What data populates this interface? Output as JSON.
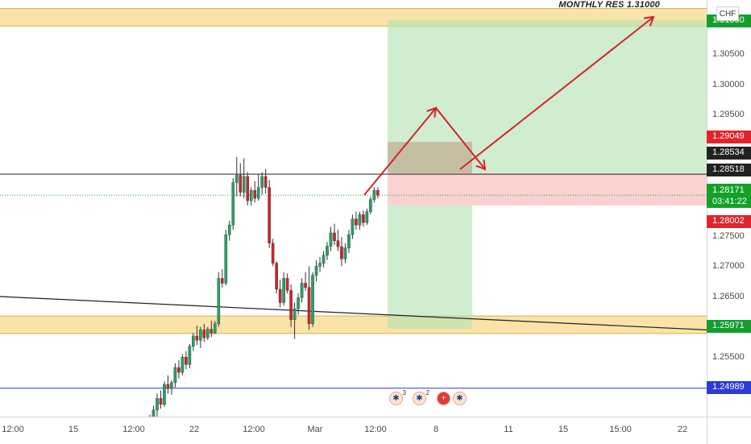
{
  "chart_data": {
    "type": "candlestick",
    "instrument_currency": "CHF",
    "title": "",
    "annotation": "MONTHLY RES 1.31000",
    "y_range": [
      1.2452,
      1.3139
    ],
    "price_ticks": [
      "1.30500",
      "1.30000",
      "1.29500",
      "1.27500",
      "1.27000",
      "1.26500",
      "1.25500"
    ],
    "time_ticks": [
      "12:00",
      "15",
      "12:00",
      "22",
      "12:00",
      "Mar",
      "12:00",
      "8",
      "11",
      "15",
      "15:00",
      "22"
    ],
    "price_badges": [
      {
        "text": "1.31000",
        "color": "#139d2f"
      },
      {
        "text": "1.29049",
        "color": "#e0242b"
      },
      {
        "text": "1.28534",
        "color": "#222222"
      },
      {
        "text": "1.28518",
        "color": "#222222"
      },
      {
        "text": "1.28171",
        "sub": "03:41:22",
        "color": "#13a128"
      },
      {
        "text": "1.28002",
        "color": "#e0242b"
      },
      {
        "text": "1.25971",
        "color": "#139d2f"
      },
      {
        "text": "1.24989",
        "color": "#2b3bd6"
      }
    ],
    "zones": [
      {
        "name": "resistance-zone",
        "from": 1.3125,
        "to": 1.3096,
        "color": "#f7d98b"
      },
      {
        "name": "support-zone",
        "from": 1.2618,
        "to": 1.2589,
        "color": "#f7d98b"
      }
    ],
    "position": {
      "entry": 1.28534,
      "target": 1.31,
      "stop": 1.28002,
      "entry_alt": 1.29049,
      "stop_alt": 1.25971
    },
    "horizontal_lines": [
      {
        "price": 1.28518,
        "color": "#222222"
      },
      {
        "price": 1.24989,
        "color": "#2b3bd6"
      }
    ],
    "candles": [
      [
        1.2435,
        1.2455,
        1.2428,
        1.2447
      ],
      [
        1.2447,
        1.247,
        1.244,
        1.2463
      ],
      [
        1.2463,
        1.249,
        1.2452,
        1.2482
      ],
      [
        1.2482,
        1.2495,
        1.2465,
        1.2472
      ],
      [
        1.2472,
        1.251,
        1.2468,
        1.2505
      ],
      [
        1.2505,
        1.252,
        1.249,
        1.2498
      ],
      [
        1.2498,
        1.2512,
        1.2488,
        1.2508
      ],
      [
        1.2508,
        1.254,
        1.25,
        1.2533
      ],
      [
        1.2533,
        1.2545,
        1.2515,
        1.2525
      ],
      [
        1.2525,
        1.2555,
        1.252,
        1.255
      ],
      [
        1.255,
        1.256,
        1.253,
        1.2538
      ],
      [
        1.2538,
        1.2572,
        1.2532,
        1.2568
      ],
      [
        1.2568,
        1.259,
        1.256,
        1.2585
      ],
      [
        1.2585,
        1.2602,
        1.257,
        1.2578
      ],
      [
        1.2578,
        1.26,
        1.2565,
        1.2595
      ],
      [
        1.2595,
        1.2605,
        1.2575,
        1.2582
      ],
      [
        1.2582,
        1.26,
        1.2578,
        1.2596
      ],
      [
        1.2596,
        1.261,
        1.2583,
        1.259
      ],
      [
        1.259,
        1.261,
        1.2588,
        1.2605
      ],
      [
        1.2605,
        1.269,
        1.26,
        1.268
      ],
      [
        1.268,
        1.2695,
        1.2665,
        1.2672
      ],
      [
        1.2672,
        1.276,
        1.2668,
        1.2752
      ],
      [
        1.2752,
        1.2775,
        1.2742,
        1.2768
      ],
      [
        1.2768,
        1.2845,
        1.276,
        1.2838
      ],
      [
        1.2838,
        1.288,
        1.2815,
        1.285
      ],
      [
        1.285,
        1.287,
        1.2815,
        1.2822
      ],
      [
        1.2822,
        1.2878,
        1.2812,
        1.2848
      ],
      [
        1.2848,
        1.2855,
        1.28,
        1.2808
      ],
      [
        1.2808,
        1.283,
        1.28,
        1.2825
      ],
      [
        1.2825,
        1.284,
        1.2805,
        1.2812
      ],
      [
        1.2812,
        1.2852,
        1.2808,
        1.283
      ],
      [
        1.283,
        1.2855,
        1.2818,
        1.2848
      ],
      [
        1.2848,
        1.286,
        1.282,
        1.283
      ],
      [
        1.283,
        1.2842,
        1.273,
        1.2738
      ],
      [
        1.2738,
        1.2745,
        1.27,
        1.2705
      ],
      [
        1.2705,
        1.2708,
        1.2655,
        1.2662
      ],
      [
        1.2662,
        1.2678,
        1.2632,
        1.264
      ],
      [
        1.264,
        1.269,
        1.2635,
        1.268
      ],
      [
        1.268,
        1.2688,
        1.2655,
        1.266
      ],
      [
        1.266,
        1.267,
        1.26,
        1.2612
      ],
      [
        1.2612,
        1.264,
        1.258,
        1.263
      ],
      [
        1.263,
        1.2655,
        1.262,
        1.2648
      ],
      [
        1.2648,
        1.268,
        1.264,
        1.2672
      ],
      [
        1.2672,
        1.269,
        1.266,
        1.2665
      ],
      [
        1.2665,
        1.27,
        1.2595,
        1.2605
      ],
      [
        1.2605,
        1.269,
        1.26,
        1.2685
      ],
      [
        1.2685,
        1.271,
        1.2675,
        1.27
      ],
      [
        1.27,
        1.2715,
        1.269,
        1.2705
      ],
      [
        1.2705,
        1.2725,
        1.2698,
        1.2718
      ],
      [
        1.2718,
        1.274,
        1.271,
        1.2733
      ],
      [
        1.2733,
        1.2765,
        1.2725,
        1.2755
      ],
      [
        1.2755,
        1.277,
        1.2735,
        1.2742
      ],
      [
        1.2742,
        1.276,
        1.2725,
        1.2732
      ],
      [
        1.2732,
        1.2748,
        1.27,
        1.2712
      ],
      [
        1.2712,
        1.2738,
        1.2705,
        1.273
      ],
      [
        1.273,
        1.276,
        1.2722,
        1.2752
      ],
      [
        1.2752,
        1.2785,
        1.2745,
        1.2778
      ],
      [
        1.2778,
        1.279,
        1.276,
        1.2768
      ],
      [
        1.2768,
        1.279,
        1.276,
        1.2785
      ],
      [
        1.2785,
        1.2792,
        1.2765,
        1.2772
      ],
      [
        1.2772,
        1.2795,
        1.2768,
        1.279
      ],
      [
        1.279,
        1.2815,
        1.2785,
        1.281
      ],
      [
        1.281,
        1.283,
        1.2805,
        1.2825
      ],
      [
        1.2825,
        1.283,
        1.2812,
        1.2817
      ]
    ],
    "events": [
      {
        "flag": "uk",
        "count": "3"
      },
      {
        "flag": "uk",
        "count": "2"
      },
      {
        "flag": "ch",
        "count": ""
      },
      {
        "flag": "uk",
        "count": ""
      }
    ],
    "colors": {
      "up": "#26a269",
      "down": "#d4232a",
      "arrow": "#d4232a"
    }
  }
}
